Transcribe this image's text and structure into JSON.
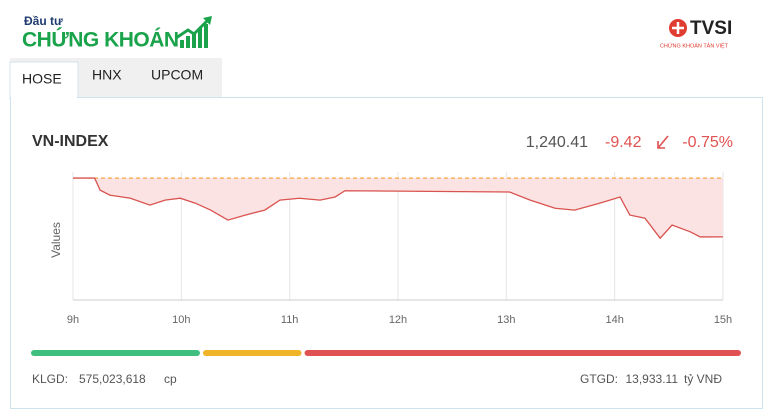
{
  "header": {
    "brand_top": "Đầu tư",
    "brand_main": "CHỨNG KHOÁN",
    "partner": "TVSI",
    "partner_sub": "CHỨNG KHOÁN TÂN VIỆT"
  },
  "tabs": [
    "HOSE",
    "HNX",
    "UPCOM"
  ],
  "index": {
    "name": "VN-INDEX",
    "value": "1,240.41",
    "change": "-9.42",
    "change_pct": "-0.75%"
  },
  "chart_data": {
    "type": "line",
    "y_label": "Values",
    "x": [
      9.0,
      9.2,
      9.25,
      9.34,
      9.53,
      9.71,
      9.85,
      9.99,
      10.13,
      10.27,
      10.43,
      10.59,
      10.77,
      10.91,
      11.09,
      11.28,
      11.42,
      11.51,
      13.03,
      13.22,
      13.45,
      13.63,
      13.86,
      14.05,
      14.14,
      14.28,
      14.42,
      14.53,
      14.7,
      14.79,
      15.0
    ],
    "series": [
      {
        "color": "#d9534f",
        "values": [
          1249.83,
          1249.83,
          1247.9,
          1247.1,
          1246.6,
          1245.5,
          1246.3,
          1246.6,
          1245.8,
          1244.7,
          1243.1,
          1243.9,
          1244.7,
          1246.3,
          1246.6,
          1246.3,
          1246.8,
          1247.8,
          1247.6,
          1246.3,
          1245.0,
          1244.7,
          1245.8,
          1246.8,
          1243.9,
          1243.4,
          1240.2,
          1242.3,
          1241.2,
          1240.4,
          1240.41
        ]
      }
    ],
    "reference_line": 1249.83,
    "reference_color": "#f0a030",
    "fill_color": "#fbe3e3",
    "xlim": [
      9,
      15
    ],
    "ylim": [
      1230.3,
      1250.8
    ],
    "xticks": [
      {
        "value": 9,
        "label": "9h"
      },
      {
        "value": 10,
        "label": "10h"
      },
      {
        "value": 11,
        "label": "11h"
      },
      {
        "value": 12,
        "label": "12h"
      },
      {
        "value": 13,
        "label": "13h"
      },
      {
        "value": 14,
        "label": "14h"
      },
      {
        "value": 15,
        "label": "15h"
      }
    ],
    "grid": true
  },
  "breadth": [
    {
      "color": "#3fbf7f",
      "value": 24
    },
    {
      "color": "#f0b429",
      "value": 14
    },
    {
      "color": "#e05252",
      "value": 62
    }
  ],
  "footer": {
    "volume_label": "KLGD:",
    "volume": "575,023,618",
    "volume_unit": "cp",
    "value_label": "GTGD:",
    "value": "13,933.11",
    "value_unit": "tỷ VNĐ"
  }
}
